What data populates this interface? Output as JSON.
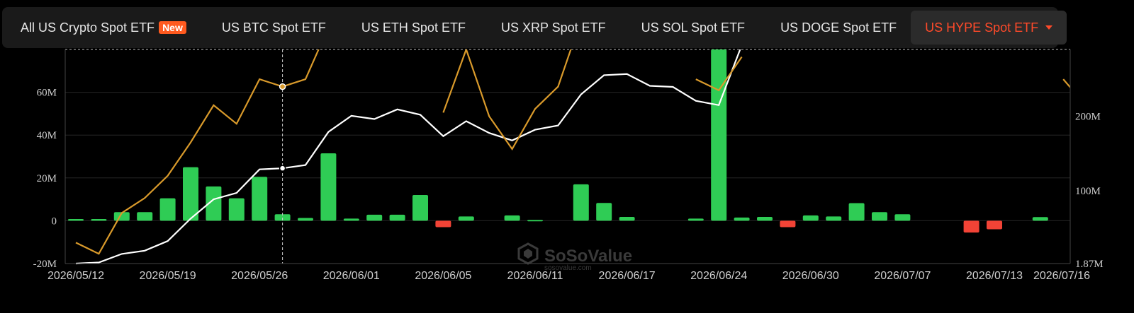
{
  "tabs": [
    {
      "label": "All US Crypto Spot ETF",
      "badge": "New"
    },
    {
      "label": "US BTC Spot ETF"
    },
    {
      "label": "US ETH Spot ETF"
    },
    {
      "label": "US XRP Spot ETF"
    },
    {
      "label": "US SOL Spot ETF"
    },
    {
      "label": "US DOGE Spot ETF"
    },
    {
      "label": "US HYPE Spot ETF",
      "active": true
    }
  ],
  "watermark": {
    "name": "SoSoValue",
    "sub": "sosovalue.com"
  },
  "colors": {
    "inflow": "#2fcc55",
    "outflow": "#f24336",
    "net_assets_line": "#d99a2b",
    "cumulative_line": "#ffffff"
  },
  "chart_data": {
    "type": "bar+line",
    "left_axis": {
      "ticks": [
        -20,
        0,
        20,
        40,
        60
      ],
      "tick_labels": [
        "-20M",
        "0",
        "20M",
        "40M",
        "60M"
      ],
      "range": [
        -20,
        80
      ]
    },
    "right_axis": {
      "labels": [
        "1.87M",
        "100M",
        "200M"
      ],
      "label_values": [
        1.87,
        100,
        200
      ],
      "range": [
        1.87,
        290
      ]
    },
    "x_labels": [
      "2026/05/12",
      "2026/05/19",
      "2026/05/26",
      "2026/06/01",
      "2026/06/05",
      "2026/06/11",
      "2026/06/17",
      "2026/06/24",
      "2026/06/30",
      "2026/07/07",
      "2026/07/13",
      "2026/07/16"
    ],
    "x_label_indices": [
      0,
      4,
      8,
      12,
      16,
      20,
      24,
      28,
      32,
      36,
      40,
      43
    ],
    "series": [
      {
        "type": "bar",
        "axis": "left",
        "values": [
          0.8,
          0.8,
          4,
          4,
          10.5,
          25,
          16,
          10.5,
          20.5,
          3,
          1.3,
          31.5,
          1,
          2.8,
          2.8,
          12,
          -3,
          2,
          null,
          2.5,
          0.4,
          null,
          17,
          8.3,
          1.8,
          null,
          null,
          1,
          80,
          1.5,
          1.8,
          -3,
          2.5,
          2,
          8.2,
          4,
          3,
          null,
          null,
          -5.5,
          -4,
          null,
          1.7,
          null
        ]
      },
      {
        "type": "line",
        "axis": "left",
        "values": [
          -20,
          -19.5,
          -15.5,
          -14,
          -9.5,
          1,
          10,
          13,
          24,
          24.5,
          26,
          41.5,
          49,
          47.5,
          52,
          49.5,
          39.5,
          46.5,
          41,
          37.5,
          42.5,
          44.5,
          59,
          68,
          68.5,
          63,
          62.5,
          56,
          54,
          82,
          null,
          null,
          null,
          null,
          null,
          null,
          null,
          null,
          null,
          null,
          null,
          null,
          null,
          null
        ]
      },
      {
        "type": "line",
        "axis": "right",
        "values": [
          30,
          15,
          70,
          90,
          120,
          165,
          215,
          190,
          250,
          240,
          250,
          320,
          null,
          null,
          null,
          null,
          205,
          290,
          200,
          156,
          210,
          240,
          330,
          null,
          null,
          null,
          null,
          250,
          235,
          280,
          null,
          null,
          null,
          null,
          null,
          null,
          null,
          null,
          null,
          null,
          null,
          null,
          null,
          250
        ]
      }
    ]
  }
}
